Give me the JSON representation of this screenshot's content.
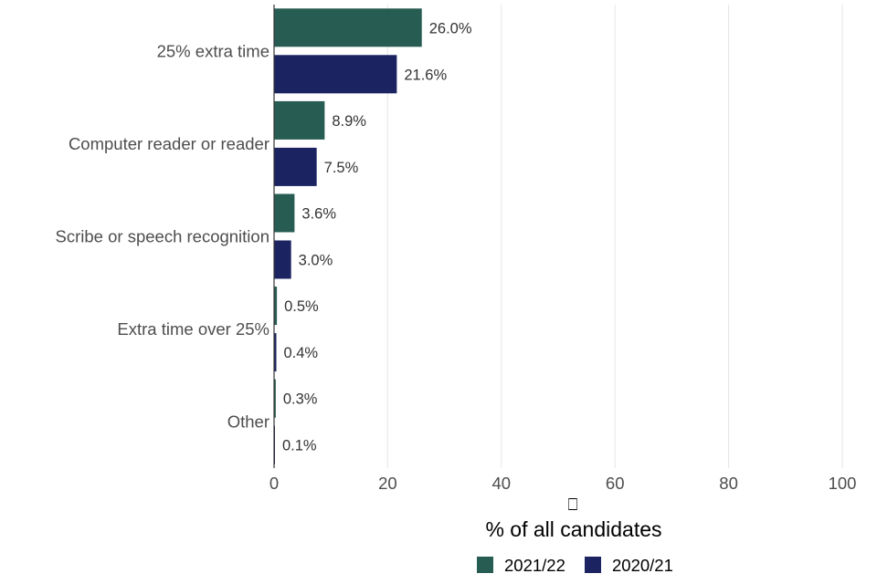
{
  "chart_data": {
    "type": "bar",
    "orientation": "horizontal",
    "categories": [
      "25% extra time",
      "Computer reader or reader",
      "Scribe or speech recognition",
      "Extra time over 25%",
      "Other"
    ],
    "series": [
      {
        "name": "2021/22",
        "color": "#265c51",
        "values": [
          26.0,
          8.9,
          3.6,
          0.5,
          0.3
        ],
        "labels": [
          "26.0%",
          "8.9%",
          "3.6%",
          "0.5%",
          "0.3%"
        ]
      },
      {
        "name": "2020/21",
        "color": "#1b2360",
        "values": [
          21.6,
          7.5,
          3.0,
          0.4,
          0.1
        ],
        "labels": [
          "21.6%",
          "7.5%",
          "3.0%",
          "0.4%",
          "0.1%"
        ]
      }
    ],
    "x_ticks": [
      "0",
      "20",
      "40",
      "60",
      "80",
      "100"
    ],
    "xlim": [
      0,
      100
    ],
    "xlabel": "% of all candidates",
    "xlabel_glyph": "⎕",
    "grid": "vertical-major",
    "legend_position": "bottom"
  }
}
